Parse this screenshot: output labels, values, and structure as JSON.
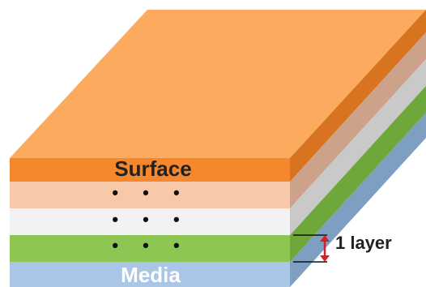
{
  "diagram": {
    "layers": [
      {
        "id": "surface",
        "label": "Surface",
        "front_color": "#F5872D",
        "side_color": "#D87420",
        "top_color": "#FBAA5E",
        "label_color": "#222222"
      },
      {
        "id": "peach",
        "label": "• • •",
        "front_color": "#F8C9A8",
        "side_color": "#CCA38A",
        "label_color": "#111111"
      },
      {
        "id": "gray",
        "label": "• • •",
        "front_color": "#F2F2F2",
        "side_color": "#C9C9C9",
        "label_color": "#111111"
      },
      {
        "id": "green",
        "label": "• • •",
        "front_color": "#8DC653",
        "side_color": "#6EA83A",
        "label_color": "#111111"
      },
      {
        "id": "media",
        "label": "Media",
        "front_color": "#A9C6E6",
        "side_color": "#7E9FC1",
        "label_color": "#FFFFFF"
      }
    ],
    "annotation": {
      "text": "1 layer",
      "arrow_color": "#D61F26",
      "line_color": "#111111"
    }
  }
}
